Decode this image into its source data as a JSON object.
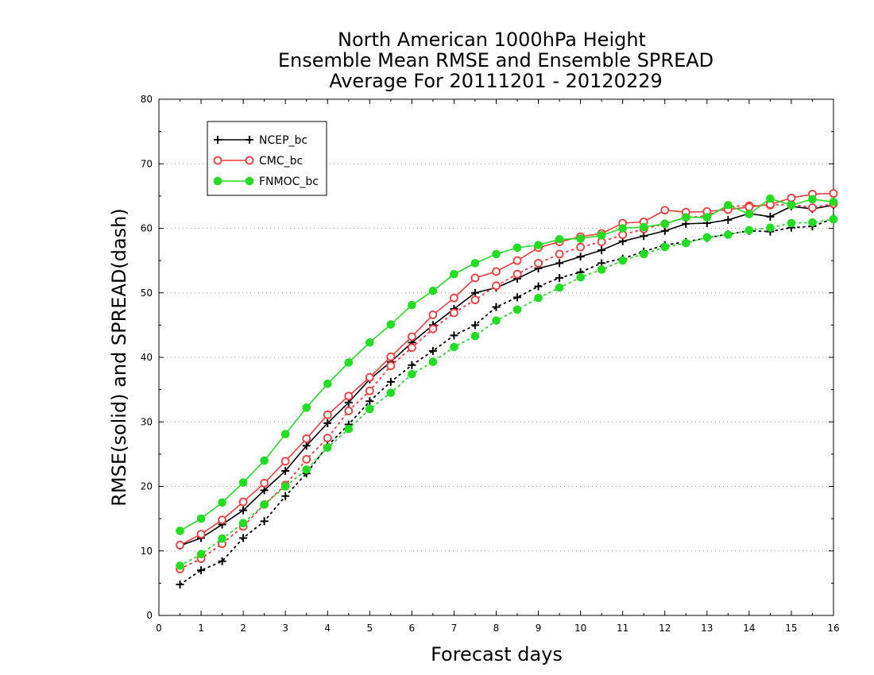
{
  "chart_data": {
    "type": "line",
    "title_lines": [
      "North American 1000hPa Height",
      "Ensemble Mean RMSE and Ensemble SPREAD",
      "Average For 20111201 - 20120229"
    ],
    "xlabel": "Forecast days",
    "ylabel": "RMSE(solid) and SPREAD(dash)",
    "xlim": [
      0,
      16
    ],
    "ylim": [
      0,
      80
    ],
    "xticks": [
      0,
      1,
      2,
      3,
      4,
      5,
      6,
      7,
      8,
      9,
      10,
      11,
      12,
      13,
      14,
      15,
      16
    ],
    "yticks": [
      0,
      10,
      20,
      30,
      40,
      50,
      60,
      70,
      80
    ],
    "grid": "horizontal-dotted",
    "legend_position": "top-left",
    "x": [
      0.5,
      1,
      1.5,
      2,
      2.5,
      3,
      3.5,
      4,
      4.5,
      5,
      5.5,
      6,
      6.5,
      7,
      7.5,
      8,
      8.5,
      9,
      9.5,
      10,
      10.5,
      11,
      11.5,
      12,
      12.5,
      13,
      13.5,
      14,
      14.5,
      15,
      15.5,
      16
    ],
    "series": [
      {
        "name": "NCEP_bc",
        "color": "#000000",
        "marker": "plus",
        "rmse": [
          10.8,
          12.0,
          14.1,
          16.3,
          19.4,
          22.4,
          26.3,
          29.8,
          33.0,
          36.6,
          39.3,
          42.3,
          45.0,
          47.5,
          50.0,
          50.8,
          52.2,
          53.8,
          54.6,
          55.6,
          56.6,
          58.0,
          58.8,
          59.6,
          60.7,
          60.8,
          61.3,
          62.3,
          61.8,
          63.4,
          63.0,
          63.6
        ],
        "spread": [
          4.8,
          7.0,
          8.4,
          12.0,
          14.6,
          18.5,
          22.0,
          26.3,
          29.6,
          33.2,
          36.2,
          38.8,
          41.0,
          43.4,
          45.0,
          47.8,
          49.3,
          51.0,
          52.3,
          53.2,
          54.6,
          55.3,
          56.4,
          57.4,
          57.9,
          58.5,
          59.1,
          59.6,
          59.5,
          60.1,
          60.3,
          61.5
        ]
      },
      {
        "name": "CMC_bc",
        "color": "#ef3b3b",
        "marker": "open-circle",
        "rmse": [
          10.9,
          12.6,
          14.8,
          17.6,
          20.5,
          23.9,
          27.4,
          31.1,
          34.0,
          36.9,
          40.1,
          43.2,
          46.6,
          49.2,
          52.3,
          53.3,
          55.0,
          57.0,
          57.9,
          58.7,
          59.2,
          60.8,
          61.0,
          62.8,
          62.5,
          62.6,
          62.9,
          63.3,
          63.7,
          64.7,
          65.3,
          65.4
        ],
        "spread": [
          7.2,
          8.8,
          11.1,
          13.8,
          17.2,
          20.2,
          24.2,
          27.5,
          31.7,
          34.8,
          38.7,
          41.5,
          44.4,
          46.9,
          48.9,
          51.1,
          52.9,
          54.6,
          56.0,
          57.1,
          57.9,
          59.0,
          59.9,
          60.7,
          61.7,
          61.9,
          63.4,
          63.5,
          63.6,
          63.7,
          63.2,
          63.8
        ]
      },
      {
        "name": "FNMOC_bc",
        "color": "#22dd22",
        "marker": "filled-circle",
        "rmse": [
          13.1,
          15.0,
          17.5,
          20.6,
          24.0,
          28.1,
          32.2,
          35.9,
          39.2,
          42.3,
          45.1,
          48.1,
          50.3,
          52.9,
          54.6,
          56.0,
          57.0,
          57.4,
          58.3,
          58.4,
          58.9,
          60.0,
          60.2,
          60.7,
          61.7,
          61.7,
          63.6,
          62.2,
          64.6,
          63.6,
          64.5,
          64.1
        ],
        "spread": [
          7.7,
          9.5,
          11.9,
          14.3,
          17.2,
          20.0,
          22.6,
          26.0,
          28.9,
          32.0,
          34.5,
          37.4,
          39.3,
          41.6,
          43.3,
          45.7,
          47.4,
          49.2,
          50.8,
          52.4,
          53.6,
          55.0,
          56.0,
          57.1,
          57.7,
          58.6,
          59.0,
          59.7,
          60.1,
          60.8,
          60.9,
          61.4
        ]
      }
    ]
  }
}
